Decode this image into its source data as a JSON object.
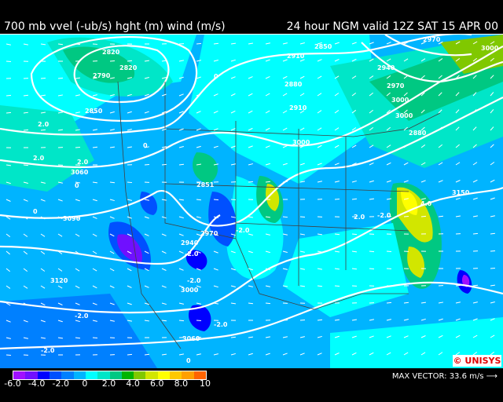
{
  "header": {
    "title_left": "700 mb vvel (-ub/s) hght (m) wind (m/s)",
    "title_right": "24 hour NGM valid 12Z SAT 15 APR 00"
  },
  "colorbar": {
    "colors": [
      "#a010ff",
      "#7010ff",
      "#0000ff",
      "#0050ff",
      "#0080ff",
      "#00b4ff",
      "#00ffff",
      "#00e6c8",
      "#00c882",
      "#00b400",
      "#80c800",
      "#d2e600",
      "#ffff00",
      "#ffc800",
      "#ffa000",
      "#ff6400"
    ],
    "labels": [
      "-6.0",
      "-4.0",
      "-2.0",
      "0",
      "2.0",
      "4.0",
      "6.0",
      "8.0",
      "10"
    ]
  },
  "max_vector": {
    "label": "MAX VECTOR:",
    "value": "33.6",
    "unit": "m/s",
    "icon": "arrow-right-icon"
  },
  "logo": {
    "text": "©UNISYS",
    "color": "#e00000"
  },
  "contour_labels": {
    "height": [
      "2820",
      "2790",
      "2820",
      "2850",
      "2910",
      "2880",
      "2910",
      "2940",
      "2970",
      "3000",
      "2970",
      "3000",
      "3000",
      "3000",
      "2940",
      "2970",
      "3060",
      "3090",
      "3120",
      "2850",
      "2880",
      "3000",
      "3060",
      "2851",
      "3150"
    ],
    "vvel": [
      "2.0",
      "2.0",
      "0",
      "0",
      "0",
      "0",
      "-2.0",
      "-2.0",
      "-2.0",
      "-2.0",
      "-2.0",
      "4.0",
      "-2.0",
      "2.0",
      "-2.0",
      "2.0",
      "0"
    ]
  }
}
